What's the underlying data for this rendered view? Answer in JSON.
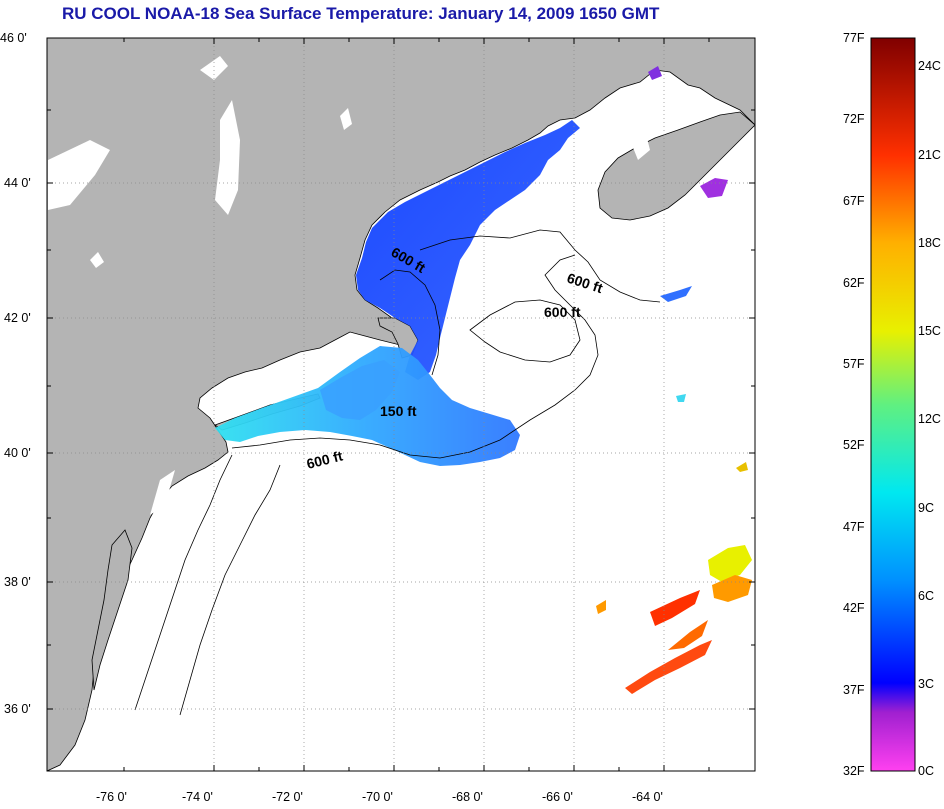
{
  "title": "RU COOL  NOAA-18  Sea Surface Temperature:  January 14, 2009 1650 GMT",
  "latitude_ticks": [
    "46 0'",
    "44 0'",
    "42 0'",
    "40 0'",
    "38 0'",
    "36 0'"
  ],
  "longitude_ticks": [
    "-76 0'",
    "-74 0'",
    "-72 0'",
    "-70 0'",
    "-68 0'",
    "-66 0'",
    "-64 0'"
  ],
  "contour_labels": [
    "600 ft",
    "600 ft",
    "600 ft",
    "150 ft",
    "600 ft"
  ],
  "colorbar": {
    "fahrenheit_labels": [
      "77F",
      "72F",
      "67F",
      "62F",
      "57F",
      "52F",
      "47F",
      "42F",
      "37F",
      "32F"
    ],
    "celsius_labels": [
      "24C",
      "21C",
      "18C",
      "15C",
      "12C",
      "9C",
      "6C",
      "3C",
      "0C"
    ]
  },
  "colors": {
    "title": "#1a1aa8",
    "land": "#b4b4b4",
    "ocean_no_data": "#ffffff"
  }
}
